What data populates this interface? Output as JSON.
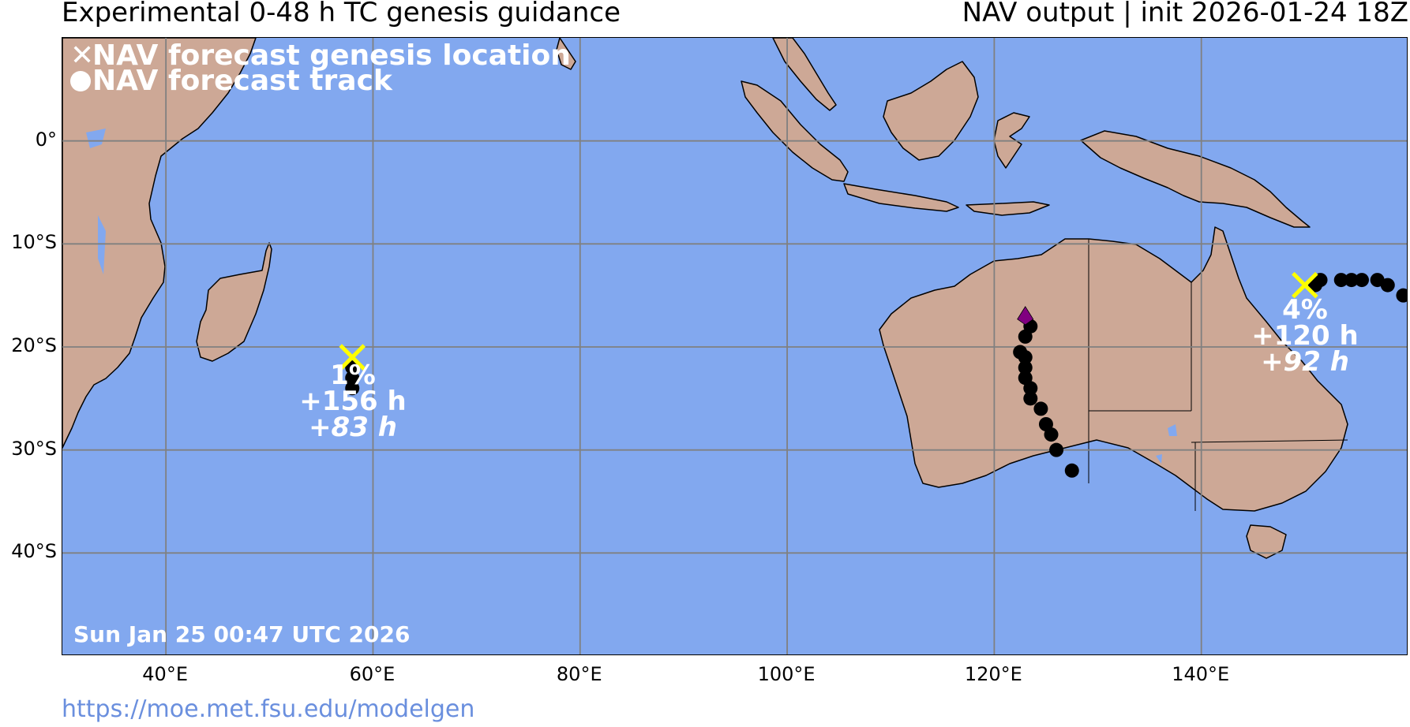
{
  "header": {
    "title_left": "Experimental 0-48 h TC genesis guidance",
    "title_right": "NAV output | init 2026-01-24 18Z"
  },
  "footer": {
    "url": "https://moe.met.fsu.edu/modelgen"
  },
  "map": {
    "extent": {
      "lon_min": 30,
      "lon_max": 160,
      "lat_min": -50,
      "lat_max": 10
    },
    "ocean_color": "#82a8ef",
    "land_color": "#cda896",
    "lat_labels": [
      {
        "lat": 0,
        "text": "0°"
      },
      {
        "lat": -10,
        "text": "10°S"
      },
      {
        "lat": -20,
        "text": "20°S"
      },
      {
        "lat": -30,
        "text": "30°S"
      },
      {
        "lat": -40,
        "text": "40°S"
      }
    ],
    "lon_labels": [
      {
        "lon": 40,
        "text": "40°E"
      },
      {
        "lon": 60,
        "text": "60°E"
      },
      {
        "lon": 80,
        "text": "80°E"
      },
      {
        "lon": 100,
        "text": "100°E"
      },
      {
        "lon": 120,
        "text": "120°E"
      },
      {
        "lon": 140,
        "text": "140°E"
      }
    ],
    "legend": {
      "genesis": "NAV forecast genesis location",
      "track": "NAV forecast track"
    },
    "timestamp": "Sun Jan 25 00:47 UTC 2026"
  },
  "storms": [
    {
      "genesis": {
        "lon": 58.0,
        "lat": -21.0
      },
      "probability": "1%",
      "time": "+156 h",
      "lead": "+83 h",
      "track": [
        [
          58.0,
          -22.0
        ],
        [
          58.0,
          -23.0
        ],
        [
          58.0,
          -24.0
        ]
      ]
    },
    {
      "genesis": {
        "lon": 150.0,
        "lat": -14.0
      },
      "probability": "4%",
      "time": "+120 h",
      "lead": "+92 h",
      "track": [
        [
          151.0,
          -14.0
        ],
        [
          151.5,
          -13.5
        ],
        [
          153.5,
          -13.5
        ],
        [
          154.5,
          -13.5
        ],
        [
          155.5,
          -13.5
        ],
        [
          157.0,
          -13.5
        ],
        [
          158.0,
          -14.0
        ],
        [
          159.5,
          -15.0
        ]
      ]
    },
    {
      "marker": {
        "lon": 123.0,
        "lat": -17.0,
        "color": "#800080"
      },
      "track": [
        [
          123.5,
          -18.0
        ],
        [
          123.0,
          -19.0
        ],
        [
          122.5,
          -20.5
        ],
        [
          123.0,
          -21.0
        ],
        [
          123.0,
          -22.0
        ],
        [
          123.0,
          -23.0
        ],
        [
          123.5,
          -24.0
        ],
        [
          123.5,
          -25.0
        ],
        [
          124.5,
          -26.0
        ],
        [
          125.0,
          -27.5
        ],
        [
          125.5,
          -28.5
        ],
        [
          126.0,
          -30.0
        ],
        [
          127.5,
          -32.0
        ]
      ]
    }
  ]
}
